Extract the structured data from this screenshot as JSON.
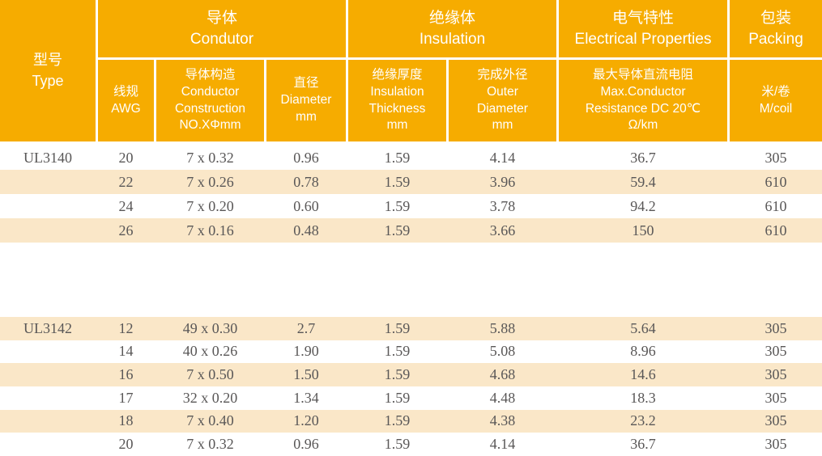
{
  "colors": {
    "orange": "#F6AC00",
    "beige": "#FAE7C8",
    "header_text": "#FFFFFF",
    "data_text": "#595757"
  },
  "table": {
    "type_header": "型号\nType",
    "groups": [
      {
        "label": "导体\nCondutor"
      },
      {
        "label": "绝缘体\nInsulation"
      },
      {
        "label": "电气特性\nElectrical Properties"
      },
      {
        "label": "包装\nPacking"
      }
    ],
    "subheaders": [
      "线规\nAWG",
      "导体构造\nConductor\nConstruction\nNO.XΦmm",
      "直径\nDiameter\nmm",
      "绝缘厚度\nInsulation\nThickness\nmm",
      "完成外径\nOuter\nDiameter\nmm",
      "最大导体直流电阻\nMax.Conductor\nResistance DC 20℃\nΩ/km",
      "米/卷\nM/coil"
    ],
    "columns": [
      "type",
      "awg",
      "conductor_construction",
      "diameter_mm",
      "insulation_thickness_mm",
      "outer_diameter_mm",
      "max_dc_resistance_ohm_km",
      "packing_m_coil"
    ],
    "blocks": [
      {
        "type": "UL3140",
        "rows": [
          {
            "shaded": false,
            "cells": [
              "20",
              "7 x 0.32",
              "0.96",
              "1.59",
              "4.14",
              "36.7",
              "305"
            ]
          },
          {
            "shaded": true,
            "cells": [
              "22",
              "7 x 0.26",
              "0.78",
              "1.59",
              "3.96",
              "59.4",
              "610"
            ]
          },
          {
            "shaded": false,
            "cells": [
              "24",
              "7 x 0.20",
              "0.60",
              "1.59",
              "3.78",
              "94.2",
              "610"
            ]
          },
          {
            "shaded": true,
            "cells": [
              "26",
              "7 x 0.16",
              "0.48",
              "1.59",
              "3.66",
              "150",
              "610"
            ]
          }
        ]
      },
      {
        "type": "UL3142",
        "rows": [
          {
            "shaded": true,
            "cells": [
              "12",
              "49 x 0.30",
              "2.7",
              "1.59",
              "5.88",
              "5.64",
              "305"
            ]
          },
          {
            "shaded": false,
            "cells": [
              "14",
              "40 x 0.26",
              "1.90",
              "1.59",
              "5.08",
              "8.96",
              "305"
            ]
          },
          {
            "shaded": true,
            "cells": [
              "16",
              "7 x 0.50",
              "1.50",
              "1.59",
              "4.68",
              "14.6",
              "305"
            ]
          },
          {
            "shaded": false,
            "cells": [
              "17",
              "32 x 0.20",
              "1.34",
              "1.59",
              "4.48",
              "18.3",
              "305"
            ]
          },
          {
            "shaded": true,
            "cells": [
              "18",
              "7 x 0.40",
              "1.20",
              "1.59",
              "4.38",
              "23.2",
              "305"
            ]
          },
          {
            "shaded": false,
            "cells": [
              "20",
              "7 x 0.32",
              "0.96",
              "1.59",
              "4.14",
              "36.7",
              "305"
            ]
          }
        ]
      }
    ]
  }
}
